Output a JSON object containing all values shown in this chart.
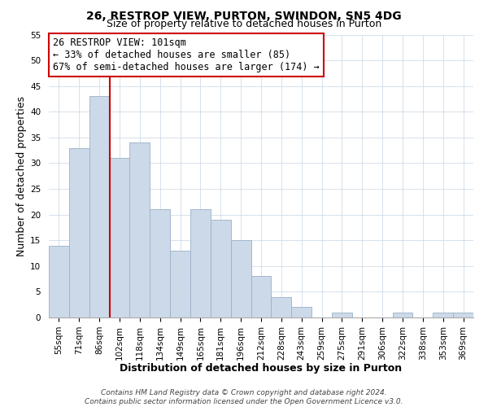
{
  "title": "26, RESTROP VIEW, PURTON, SWINDON, SN5 4DG",
  "subtitle": "Size of property relative to detached houses in Purton",
  "xlabel": "Distribution of detached houses by size in Purton",
  "ylabel": "Number of detached properties",
  "bar_labels": [
    "55sqm",
    "71sqm",
    "86sqm",
    "102sqm",
    "118sqm",
    "134sqm",
    "149sqm",
    "165sqm",
    "181sqm",
    "196sqm",
    "212sqm",
    "228sqm",
    "243sqm",
    "259sqm",
    "275sqm",
    "291sqm",
    "306sqm",
    "322sqm",
    "338sqm",
    "353sqm",
    "369sqm"
  ],
  "bar_values": [
    14,
    33,
    43,
    31,
    34,
    21,
    13,
    21,
    19,
    15,
    8,
    4,
    2,
    0,
    1,
    0,
    0,
    1,
    0,
    1,
    1
  ],
  "bar_color": "#ccd9e8",
  "bar_edge_color": "#9ab0c8",
  "vline_color": "#cc0000",
  "ylim": [
    0,
    55
  ],
  "yticks": [
    0,
    5,
    10,
    15,
    20,
    25,
    30,
    35,
    40,
    45,
    50,
    55
  ],
  "annotation_title": "26 RESTROP VIEW: 101sqm",
  "annotation_line1": "← 33% of detached houses are smaller (85)",
  "annotation_line2": "67% of semi-detached houses are larger (174) →",
  "annotation_box_color": "#ffffff",
  "annotation_box_edge": "#cc0000",
  "footer_line1": "Contains HM Land Registry data © Crown copyright and database right 2024.",
  "footer_line2": "Contains public sector information licensed under the Open Government Licence v3.0.",
  "title_fontsize": 10,
  "subtitle_fontsize": 9,
  "axis_label_fontsize": 9,
  "tick_fontsize": 7.5,
  "annotation_fontsize": 8.5,
  "footer_fontsize": 6.5
}
